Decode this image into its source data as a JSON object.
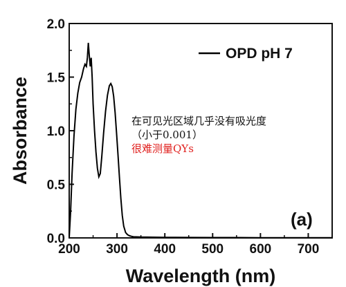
{
  "chart_data": {
    "type": "line",
    "xlabel": "Wavelength (nm)",
    "ylabel": "Absorbance",
    "xlim": [
      200,
      750
    ],
    "ylim": [
      0.0,
      2.0
    ],
    "x_ticks": [
      200,
      300,
      400,
      500,
      600,
      700
    ],
    "y_ticks": [
      "0.0",
      "0.5",
      "1.0",
      "1.5",
      "2.0"
    ],
    "legend_position": "top-right",
    "panel_label": "(a)",
    "series": [
      {
        "name": "OPD pH 7",
        "color": "#000000",
        "x": [
          200,
          203,
          206,
          210,
          214,
          218,
          222,
          226,
          230,
          233,
          236,
          238,
          240,
          242,
          244,
          246,
          248,
          250,
          253,
          256,
          259,
          262,
          265,
          268,
          272,
          276,
          280,
          284,
          287,
          290,
          293,
          296,
          299,
          302,
          305,
          308,
          311,
          314,
          318,
          322,
          326,
          330,
          335,
          340,
          350,
          400,
          450,
          500,
          550,
          600,
          650,
          700,
          750
        ],
        "y": [
          0.0,
          0.25,
          0.6,
          0.95,
          1.2,
          1.35,
          1.45,
          1.5,
          1.58,
          1.62,
          1.6,
          1.68,
          1.82,
          1.7,
          1.6,
          1.68,
          1.5,
          1.25,
          1.0,
          0.8,
          0.65,
          0.57,
          0.6,
          0.75,
          0.98,
          1.18,
          1.33,
          1.42,
          1.44,
          1.41,
          1.32,
          1.17,
          0.98,
          0.78,
          0.57,
          0.37,
          0.21,
          0.11,
          0.05,
          0.03,
          0.02,
          0.015,
          0.01,
          0.01,
          0.008,
          0.005,
          0.004,
          0.003,
          0.003,
          0.002,
          0.002,
          0.002,
          0.002
        ]
      }
    ]
  },
  "annotation": {
    "line1": "在可见光区域几乎没有吸光度",
    "line2": "（小于0.001）",
    "line3": "很难测量QYs",
    "line3_color": "#e0201e"
  }
}
